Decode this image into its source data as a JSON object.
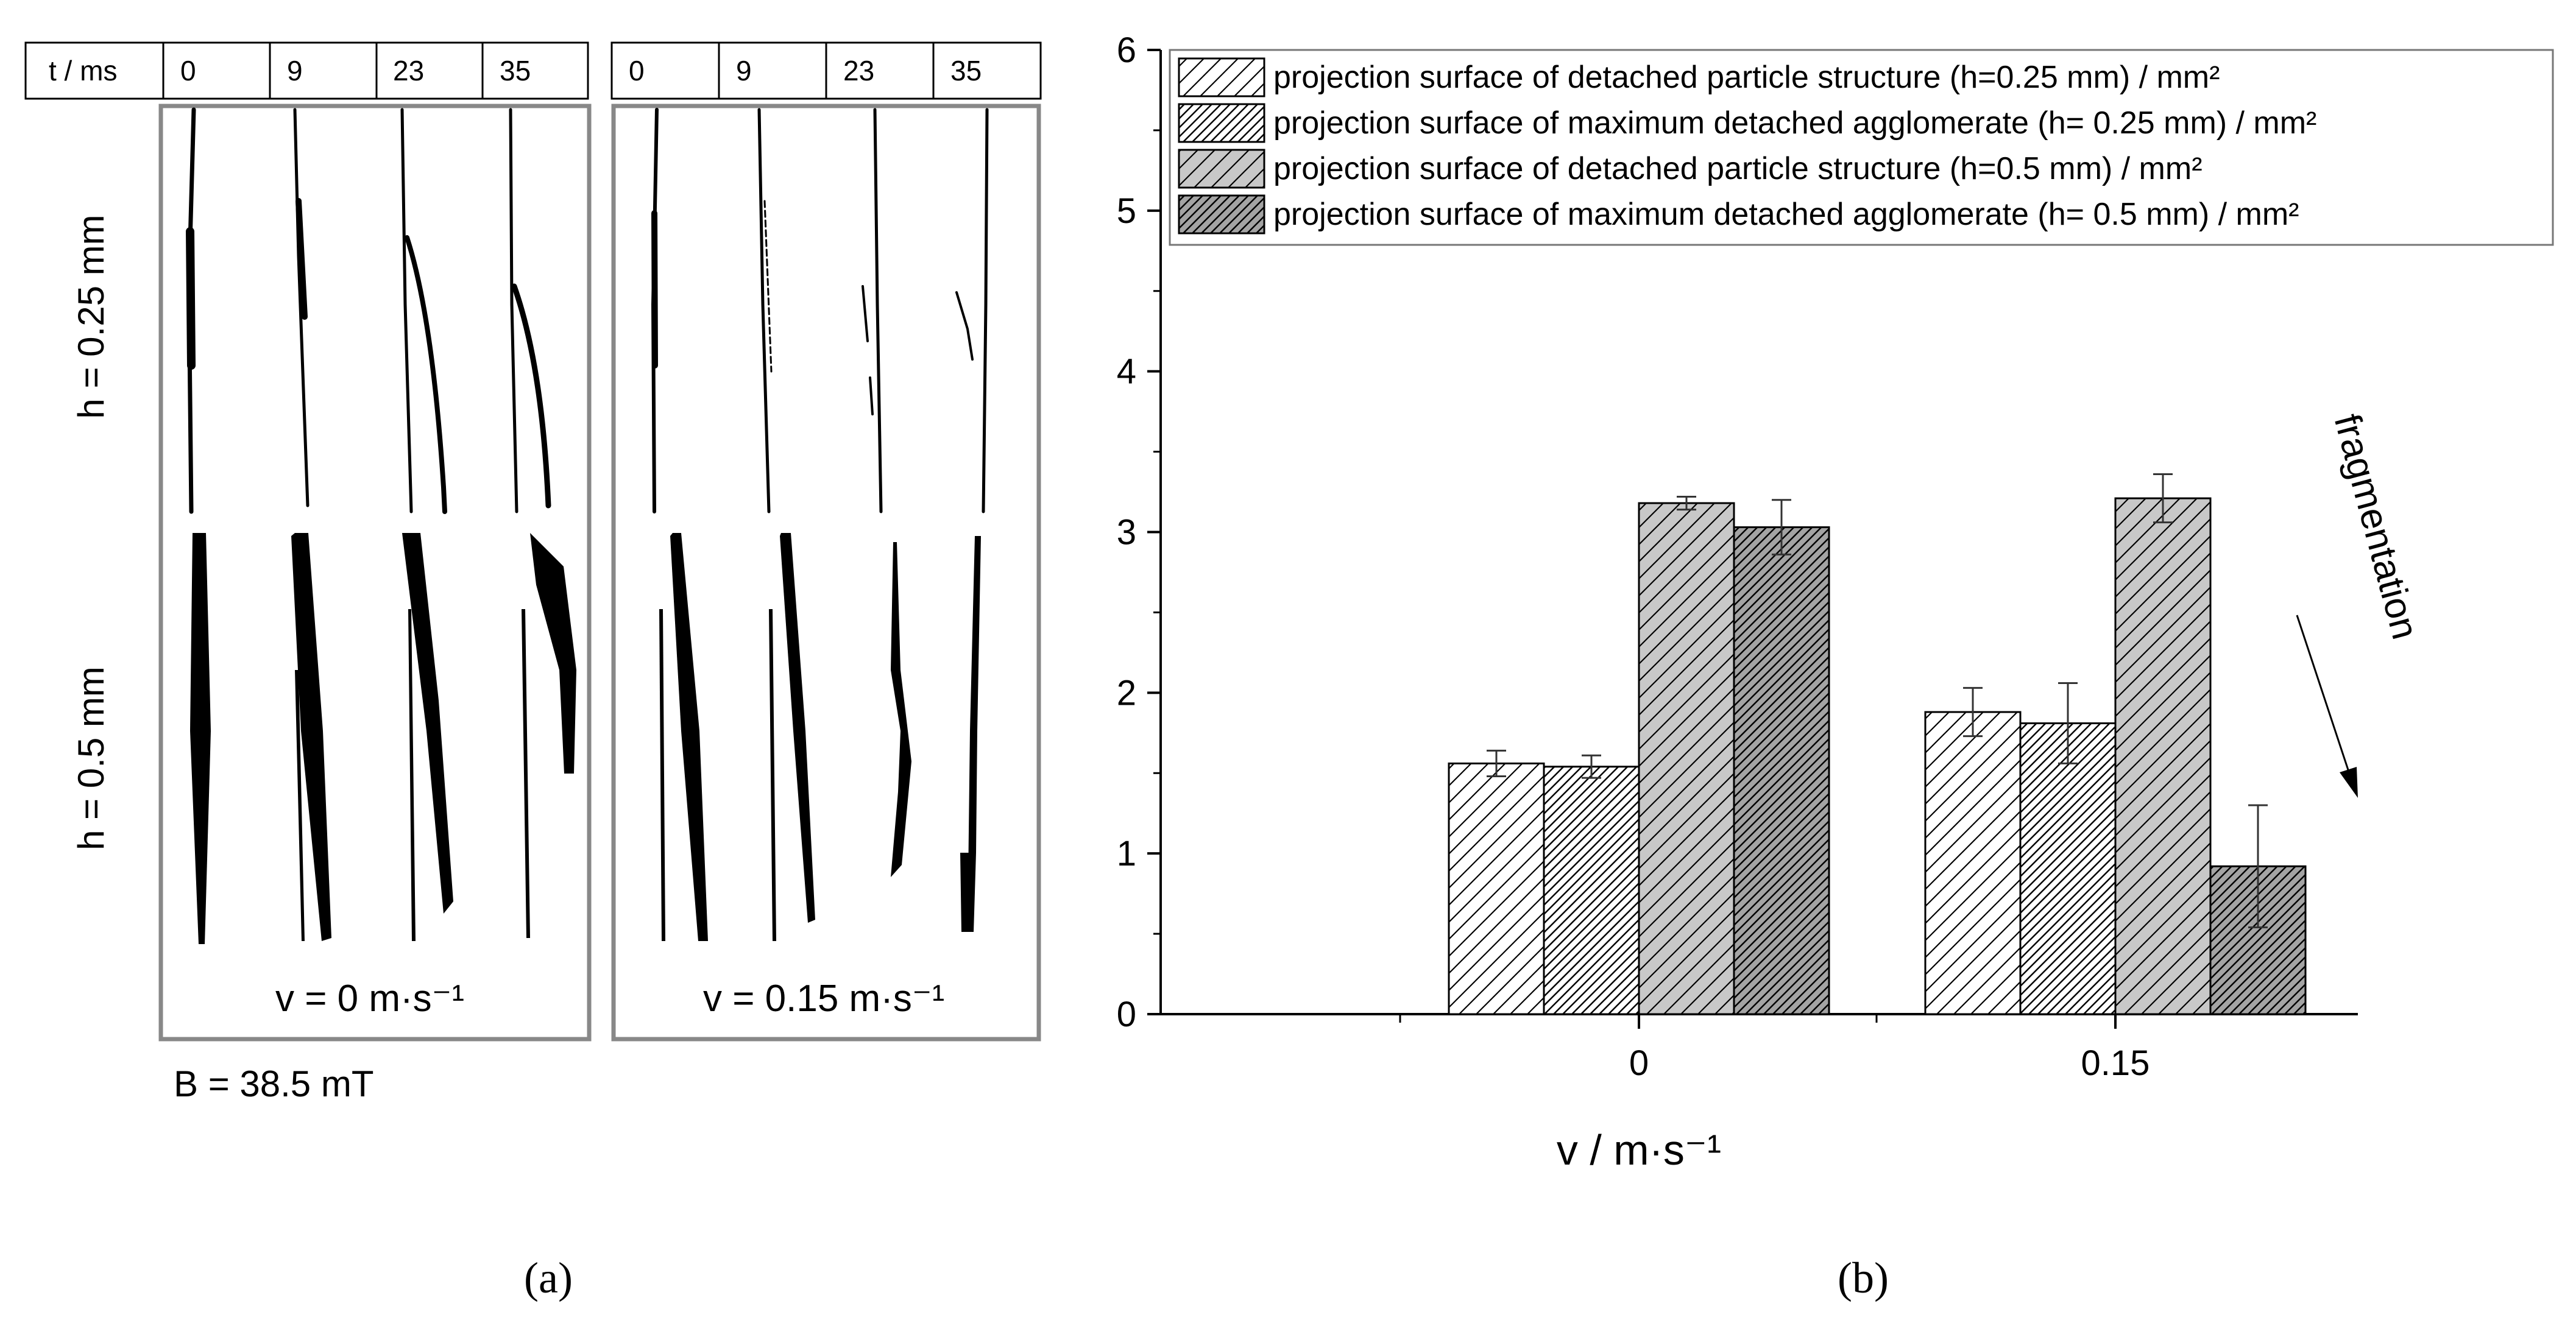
{
  "panel_a": {
    "time_label": "t / ms",
    "times_left": [
      "0",
      "9",
      "23",
      "35"
    ],
    "times_right": [
      "0",
      "9",
      "23",
      "35"
    ],
    "row_labels": [
      "h = 0.25 mm",
      "h = 0.5 mm"
    ],
    "velocity_left": "v = 0 m·s⁻¹",
    "velocity_right": "v = 0.15 m·s⁻¹",
    "field": "B = 38.5 mT",
    "caption": "(a)"
  },
  "chart_data": {
    "type": "bar",
    "categories": [
      "0",
      "0.15"
    ],
    "series": [
      {
        "name": "projection surface of detached particle structure (h=0.25 mm) / mm²",
        "values": [
          1.56,
          1.88
        ],
        "errors": [
          0.08,
          0.15
        ],
        "fill": "#ffffff",
        "pattern": "sparse-hatch"
      },
      {
        "name": "projection surface of maximum detached agglomerate (h= 0.25 mm) / mm²",
        "values": [
          1.54,
          1.81
        ],
        "errors": [
          0.07,
          0.25
        ],
        "fill": "#ffffff",
        "pattern": "dense-hatch"
      },
      {
        "name": "projection surface of detached particle structure (h=0.5 mm) / mm²",
        "values": [
          3.18,
          3.21
        ],
        "errors": [
          0.04,
          0.15
        ],
        "fill": "#c8c8c8",
        "pattern": "sparse-hatch"
      },
      {
        "name": "projection surface of maximum detached agglomerate (h= 0.5 mm) / mm²",
        "values": [
          3.03,
          0.92
        ],
        "errors": [
          0.17,
          0.38
        ],
        "fill": "#a4a4a4",
        "pattern": "dense-hatch"
      }
    ],
    "ylim": [
      0,
      6
    ],
    "yticks": [
      "0",
      "1",
      "2",
      "3",
      "4",
      "5",
      "6"
    ],
    "xlabel": "v / m·s⁻¹",
    "ylabel": "",
    "annotation": "fragmentation",
    "legend": "top-right",
    "caption": "(b)"
  }
}
